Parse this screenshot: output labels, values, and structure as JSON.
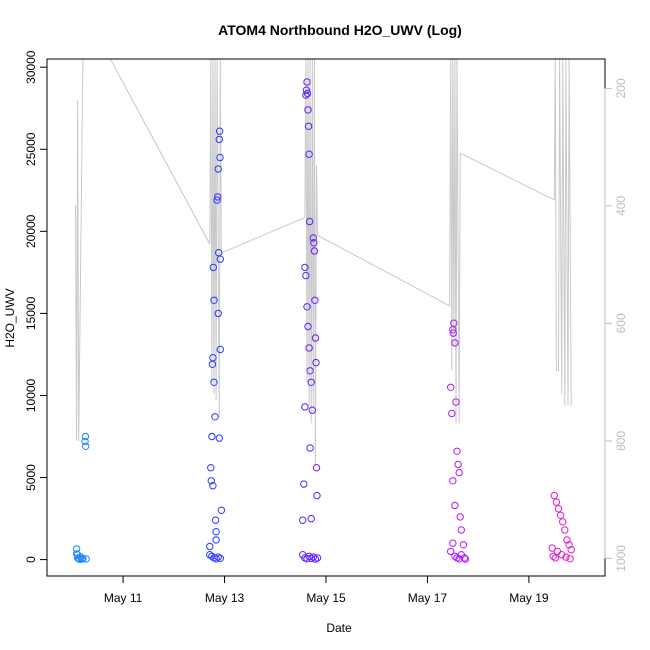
{
  "chart_data": {
    "type": "scatter",
    "title": "ATOM4 Northbound H2O_UWV (Log)",
    "xlabel": "Date",
    "ylabel": "H2O_UWV",
    "x_range_days": [
      "May 9 12:00",
      "May 20 12:00"
    ],
    "x_ticks": [
      "May 11",
      "May 13",
      "May 15",
      "May 17",
      "May 19"
    ],
    "y_range": [
      -1000,
      30500
    ],
    "y_ticks": [
      0,
      5000,
      10000,
      15000,
      20000,
      25000,
      30000
    ],
    "y_tick_labels": [
      "0",
      "5000",
      "10000",
      "15000",
      "20000",
      "25000",
      "30000"
    ],
    "secondary_axis": {
      "reversed": true,
      "range": [
        1030,
        150
      ],
      "ticks": [
        200,
        400,
        600,
        800,
        1000
      ],
      "tick_labels": [
        "200",
        "400",
        "600",
        "800",
        "1000"
      ],
      "color": "#bdbdbd"
    },
    "grid": false,
    "legend": "none",
    "marker": "open circle",
    "color_gradient": [
      "#1ea0ff",
      "#1a40ff",
      "#6a1aff",
      "#b41aff",
      "#ff1ab4"
    ],
    "series": [
      {
        "values": [
          {
            "x": "May 10 02:00",
            "y": 350
          },
          {
            "x": "May 10 02:00",
            "y": 650
          },
          {
            "x": "May 10 02:30",
            "y": 300
          },
          {
            "x": "May 10 02:30",
            "y": 100
          },
          {
            "x": "May 10 03:00",
            "y": 50
          },
          {
            "x": "May 10 03:30",
            "y": 20
          },
          {
            "x": "May 10 04:00",
            "y": 150
          },
          {
            "x": "May 10 04:30",
            "y": 30
          },
          {
            "x": "May 10 05:00",
            "y": 60
          },
          {
            "x": "May 10 06:00",
            "y": 7200
          },
          {
            "x": "May 10 06:10",
            "y": 7500
          },
          {
            "x": "May 10 06:20",
            "y": 6900
          },
          {
            "x": "May 10 06:30",
            "y": 40
          },
          {
            "x": "May 12 17:00",
            "y": 300
          },
          {
            "x": "May 12 17:30",
            "y": 5600
          },
          {
            "x": "May 12 17:45",
            "y": 4800
          },
          {
            "x": "May 12 18:00",
            "y": 7500
          },
          {
            "x": "May 12 18:15",
            "y": 11900
          },
          {
            "x": "May 12 18:30",
            "y": 12300
          },
          {
            "x": "May 12 18:40",
            "y": 17800
          },
          {
            "x": "May 12 19:00",
            "y": 15800
          },
          {
            "x": "May 12 19:00",
            "y": 10800
          },
          {
            "x": "May 12 19:30",
            "y": 8700
          },
          {
            "x": "May 12 19:45",
            "y": 2400
          },
          {
            "x": "May 12 20:00",
            "y": 1700
          },
          {
            "x": "May 12 20:30",
            "y": 21900
          },
          {
            "x": "May 12 20:45",
            "y": 22100
          },
          {
            "x": "May 12 21:00",
            "y": 23800
          },
          {
            "x": "May 12 21:00",
            "y": 15000
          },
          {
            "x": "May 12 21:15",
            "y": 18700
          },
          {
            "x": "May 12 21:30",
            "y": 25600
          },
          {
            "x": "May 12 21:40",
            "y": 26100
          },
          {
            "x": "May 12 21:50",
            "y": 24500
          },
          {
            "x": "May 12 22:00",
            "y": 18300
          },
          {
            "x": "May 12 22:00",
            "y": 12800
          },
          {
            "x": "May 12 22:30",
            "y": 3000
          },
          {
            "x": "May 12 21:30",
            "y": 7400
          },
          {
            "x": "May 12 17:00",
            "y": 800
          },
          {
            "x": "May 12 18:00",
            "y": 200
          },
          {
            "x": "May 12 19:00",
            "y": 100
          },
          {
            "x": "May 12 20:00",
            "y": 50
          },
          {
            "x": "May 12 21:00",
            "y": 150
          },
          {
            "x": "May 12 22:00",
            "y": 80
          },
          {
            "x": "May 12 18:30",
            "y": 4500
          },
          {
            "x": "May 12 20:00",
            "y": 1200
          },
          {
            "x": "May 14 13:00",
            "y": 2400
          },
          {
            "x": "May 14 13:30",
            "y": 4600
          },
          {
            "x": "May 14 14:00",
            "y": 9300
          },
          {
            "x": "May 14 14:30",
            "y": 28300
          },
          {
            "x": "May 14 14:45",
            "y": 28600
          },
          {
            "x": "May 14 15:00",
            "y": 29100
          },
          {
            "x": "May 14 15:15",
            "y": 28400
          },
          {
            "x": "May 14 15:30",
            "y": 27400
          },
          {
            "x": "May 14 15:45",
            "y": 26400
          },
          {
            "x": "May 14 16:00",
            "y": 24700
          },
          {
            "x": "May 14 16:15",
            "y": 20600
          },
          {
            "x": "May 14 14:00",
            "y": 17800
          },
          {
            "x": "May 14 14:30",
            "y": 17300
          },
          {
            "x": "May 14 15:00",
            "y": 15400
          },
          {
            "x": "May 14 15:30",
            "y": 14200
          },
          {
            "x": "May 14 16:00",
            "y": 12900
          },
          {
            "x": "May 14 16:30",
            "y": 11500
          },
          {
            "x": "May 14 17:00",
            "y": 10800
          },
          {
            "x": "May 14 17:30",
            "y": 9100
          },
          {
            "x": "May 14 18:00",
            "y": 19600
          },
          {
            "x": "May 14 18:15",
            "y": 19300
          },
          {
            "x": "May 14 18:30",
            "y": 18800
          },
          {
            "x": "May 14 18:45",
            "y": 15800
          },
          {
            "x": "May 14 19:00",
            "y": 13500
          },
          {
            "x": "May 14 19:15",
            "y": 12000
          },
          {
            "x": "May 14 19:30",
            "y": 5600
          },
          {
            "x": "May 14 19:45",
            "y": 3900
          },
          {
            "x": "May 14 16:30",
            "y": 6800
          },
          {
            "x": "May 14 17:00",
            "y": 2500
          },
          {
            "x": "May 14 13:00",
            "y": 300
          },
          {
            "x": "May 14 14:00",
            "y": 100
          },
          {
            "x": "May 14 15:00",
            "y": 50
          },
          {
            "x": "May 14 16:00",
            "y": 200
          },
          {
            "x": "May 14 17:00",
            "y": 80
          },
          {
            "x": "May 14 18:00",
            "y": 150
          },
          {
            "x": "May 14 19:00",
            "y": 30
          },
          {
            "x": "May 14 20:00",
            "y": 100
          },
          {
            "x": "May 17 12:00",
            "y": 14000
          },
          {
            "x": "May 17 12:15",
            "y": 13800
          },
          {
            "x": "May 17 12:30",
            "y": 14400
          },
          {
            "x": "May 17 13:00",
            "y": 13200
          },
          {
            "x": "May 17 11:00",
            "y": 10500
          },
          {
            "x": "May 17 11:30",
            "y": 8900
          },
          {
            "x": "May 17 13:30",
            "y": 9600
          },
          {
            "x": "May 17 14:00",
            "y": 6600
          },
          {
            "x": "May 17 14:30",
            "y": 5800
          },
          {
            "x": "May 17 15:00",
            "y": 5300
          },
          {
            "x": "May 17 12:00",
            "y": 4800
          },
          {
            "x": "May 17 13:00",
            "y": 3300
          },
          {
            "x": "May 17 15:30",
            "y": 2600
          },
          {
            "x": "May 17 16:00",
            "y": 1800
          },
          {
            "x": "May 17 17:00",
            "y": 900
          },
          {
            "x": "May 17 11:00",
            "y": 500
          },
          {
            "x": "May 17 12:00",
            "y": 1000
          },
          {
            "x": "May 17 13:00",
            "y": 200
          },
          {
            "x": "May 17 14:00",
            "y": 100
          },
          {
            "x": "May 17 15:00",
            "y": 50
          },
          {
            "x": "May 17 16:00",
            "y": 300
          },
          {
            "x": "May 17 17:30",
            "y": 100
          },
          {
            "x": "May 17 18:00",
            "y": 30
          },
          {
            "x": "May 19 11:00",
            "y": 700
          },
          {
            "x": "May 19 12:00",
            "y": 3900
          },
          {
            "x": "May 19 13:00",
            "y": 3500
          },
          {
            "x": "May 19 14:00",
            "y": 3100
          },
          {
            "x": "May 19 15:00",
            "y": 2700
          },
          {
            "x": "May 19 16:00",
            "y": 2300
          },
          {
            "x": "May 19 17:00",
            "y": 1800
          },
          {
            "x": "May 19 18:00",
            "y": 1200
          },
          {
            "x": "May 19 19:00",
            "y": 900
          },
          {
            "x": "May 19 20:00",
            "y": 600
          },
          {
            "x": "May 19 11:30",
            "y": 200
          },
          {
            "x": "May 19 12:30",
            "y": 100
          },
          {
            "x": "May 19 13:30",
            "y": 500
          },
          {
            "x": "May 19 15:30",
            "y": 300
          },
          {
            "x": "May 19 17:30",
            "y": 150
          },
          {
            "x": "May 19 19:30",
            "y": 50
          }
        ]
      }
    ],
    "secondary_line": {
      "color": "#c8c8c8",
      "points": [
        {
          "x": "May 10 01:30",
          "y": 400
        },
        {
          "x": "May 10 02:00",
          "y": 800
        },
        {
          "x": "May 10 02:30",
          "y": 220
        },
        {
          "x": "May 10 03:00",
          "y": 800
        },
        {
          "x": "May 10 05:00",
          "y": 150
        },
        {
          "x": "May 10 18:00",
          "y": 150
        },
        {
          "x": "May 12 17:00",
          "y": 465
        },
        {
          "x": "May 12 17:30",
          "y": 150
        },
        {
          "x": "May 12 18:00",
          "y": 700
        },
        {
          "x": "May 12 18:30",
          "y": 150
        },
        {
          "x": "May 12 19:00",
          "y": 720
        },
        {
          "x": "May 12 19:30",
          "y": 150
        },
        {
          "x": "May 12 20:00",
          "y": 730
        },
        {
          "x": "May 12 20:30",
          "y": 150
        },
        {
          "x": "May 12 21:30",
          "y": 760
        },
        {
          "x": "May 12 22:00",
          "y": 150
        },
        {
          "x": "May 12 22:30",
          "y": 480
        },
        {
          "x": "May 14 14:00",
          "y": 420
        },
        {
          "x": "May 14 14:30",
          "y": 150
        },
        {
          "x": "May 14 15:00",
          "y": 700
        },
        {
          "x": "May 14 15:30",
          "y": 150
        },
        {
          "x": "May 14 16:00",
          "y": 740
        },
        {
          "x": "May 14 16:30",
          "y": 150
        },
        {
          "x": "May 14 17:00",
          "y": 770
        },
        {
          "x": "May 14 17:30",
          "y": 150
        },
        {
          "x": "May 14 18:00",
          "y": 750
        },
        {
          "x": "May 14 18:30",
          "y": 150
        },
        {
          "x": "May 14 19:00",
          "y": 840
        },
        {
          "x": "May 14 19:30",
          "y": 330
        },
        {
          "x": "May 14 20:00",
          "y": 450
        },
        {
          "x": "May 17 10:30",
          "y": 570
        },
        {
          "x": "May 17 11:00",
          "y": 150
        },
        {
          "x": "May 17 11:30",
          "y": 680
        },
        {
          "x": "May 17 12:00",
          "y": 150
        },
        {
          "x": "May 17 12:30",
          "y": 640
        },
        {
          "x": "May 17 13:00",
          "y": 150
        },
        {
          "x": "May 17 13:30",
          "y": 770
        },
        {
          "x": "May 17 14:00",
          "y": 150
        },
        {
          "x": "May 17 15:00",
          "y": 770
        },
        {
          "x": "May 17 15:30",
          "y": 310
        },
        {
          "x": "May 19 12:00",
          "y": 390
        },
        {
          "x": "May 19 12:30",
          "y": 150
        },
        {
          "x": "May 19 13:00",
          "y": 680
        },
        {
          "x": "May 19 14:00",
          "y": 680
        },
        {
          "x": "May 19 14:30",
          "y": 150
        },
        {
          "x": "May 19 15:30",
          "y": 720
        },
        {
          "x": "May 19 16:00",
          "y": 150
        },
        {
          "x": "May 19 17:00",
          "y": 740
        },
        {
          "x": "May 19 17:30",
          "y": 150
        },
        {
          "x": "May 19 18:30",
          "y": 740
        },
        {
          "x": "May 19 19:00",
          "y": 150
        },
        {
          "x": "May 19 20:00",
          "y": 740
        }
      ]
    }
  }
}
